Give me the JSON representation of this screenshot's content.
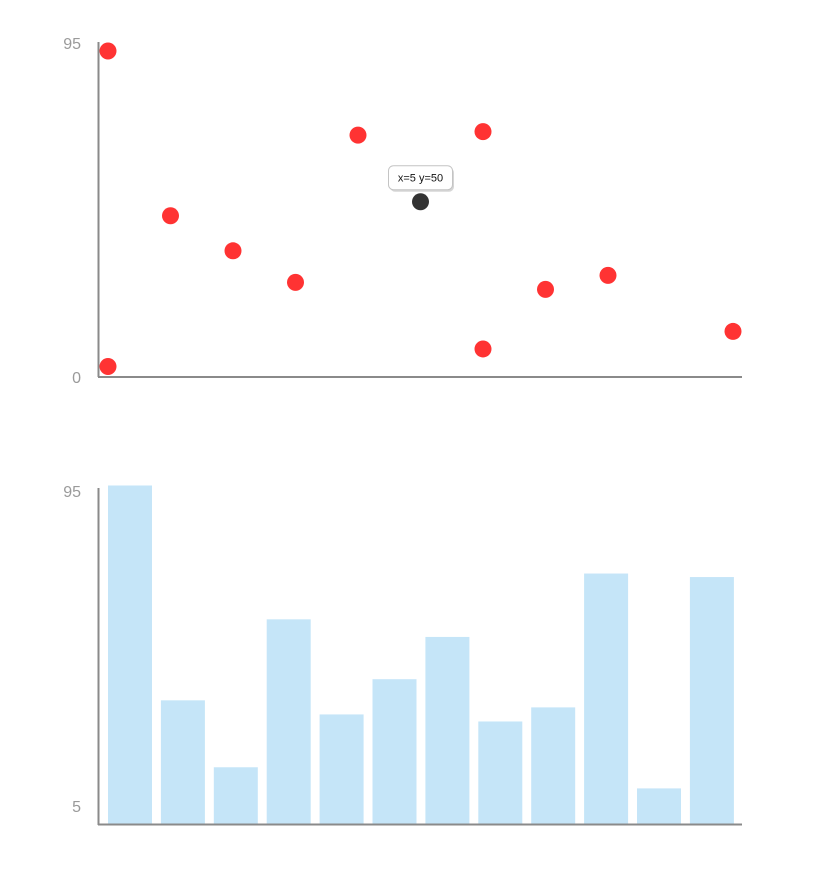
{
  "chart_data": [
    {
      "type": "scatter",
      "title": "",
      "xlabel": "",
      "ylabel": "",
      "xlim": [
        0,
        10
      ],
      "ylim": [
        0,
        95
      ],
      "y_ticks": [
        "0",
        "95"
      ],
      "grid": false,
      "series": [
        {
          "color": "#ff3333",
          "points": [
            {
              "x": 0,
              "y": 93
            },
            {
              "x": 0,
              "y": 3
            },
            {
              "x": 1,
              "y": 46
            },
            {
              "x": 2,
              "y": 36
            },
            {
              "x": 3,
              "y": 27
            },
            {
              "x": 4,
              "y": 69
            },
            {
              "x": 6,
              "y": 70
            },
            {
              "x": 6,
              "y": 8
            },
            {
              "x": 7,
              "y": 25
            },
            {
              "x": 8,
              "y": 29
            },
            {
              "x": 10,
              "y": 13
            }
          ]
        }
      ],
      "highlight": {
        "x": 5,
        "y": 50,
        "color": "#333333",
        "tooltip": "x=5 y=50"
      }
    },
    {
      "type": "bar",
      "title": "",
      "xlabel": "",
      "ylabel": "",
      "ylim": [
        5,
        95
      ],
      "y_ticks": [
        "5",
        "95"
      ],
      "grid": false,
      "bar_color": "#c5e5f8",
      "values": [
        96,
        35,
        16,
        58,
        31,
        41,
        53,
        29,
        33,
        71,
        10,
        70
      ]
    }
  ]
}
